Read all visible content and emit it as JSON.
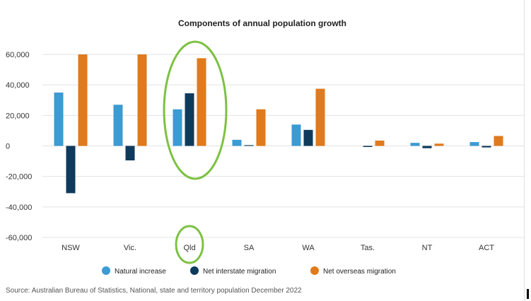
{
  "chart_data": {
    "type": "bar",
    "title": "Components of annual population growth",
    "categories": [
      "NSW",
      "Vic.",
      "Qld",
      "SA",
      "WA",
      "Tas.",
      "NT",
      "ACT"
    ],
    "series": [
      {
        "name": "Natural increase",
        "color": "#3b9bd3",
        "values": [
          35000,
          27000,
          24000,
          4000,
          14000,
          0,
          2000,
          2500
        ]
      },
      {
        "name": "Net interstate migration",
        "color": "#0e3a5c",
        "values": [
          -31000,
          -9500,
          34500,
          500,
          10500,
          -700,
          -1500,
          -1000
        ]
      },
      {
        "name": "Net overseas migration",
        "color": "#e07a1c",
        "values": [
          60000,
          60000,
          57500,
          24000,
          37500,
          3500,
          1500,
          6500
        ]
      }
    ],
    "yticks": [
      "60,000",
      "40,000",
      "20,000",
      "0",
      "-20,000",
      "-40,000",
      "-60,000"
    ],
    "ytick_values": [
      60000,
      40000,
      20000,
      0,
      -20000,
      -40000,
      -60000
    ],
    "ylim": [
      -60000,
      60000
    ],
    "grid": true,
    "legend": "bottom",
    "highlight": {
      "category": "Qld",
      "color": "#7dc142"
    },
    "source": "Source: Australian Bureau of Statistics, National, state and territory population December 2022"
  }
}
